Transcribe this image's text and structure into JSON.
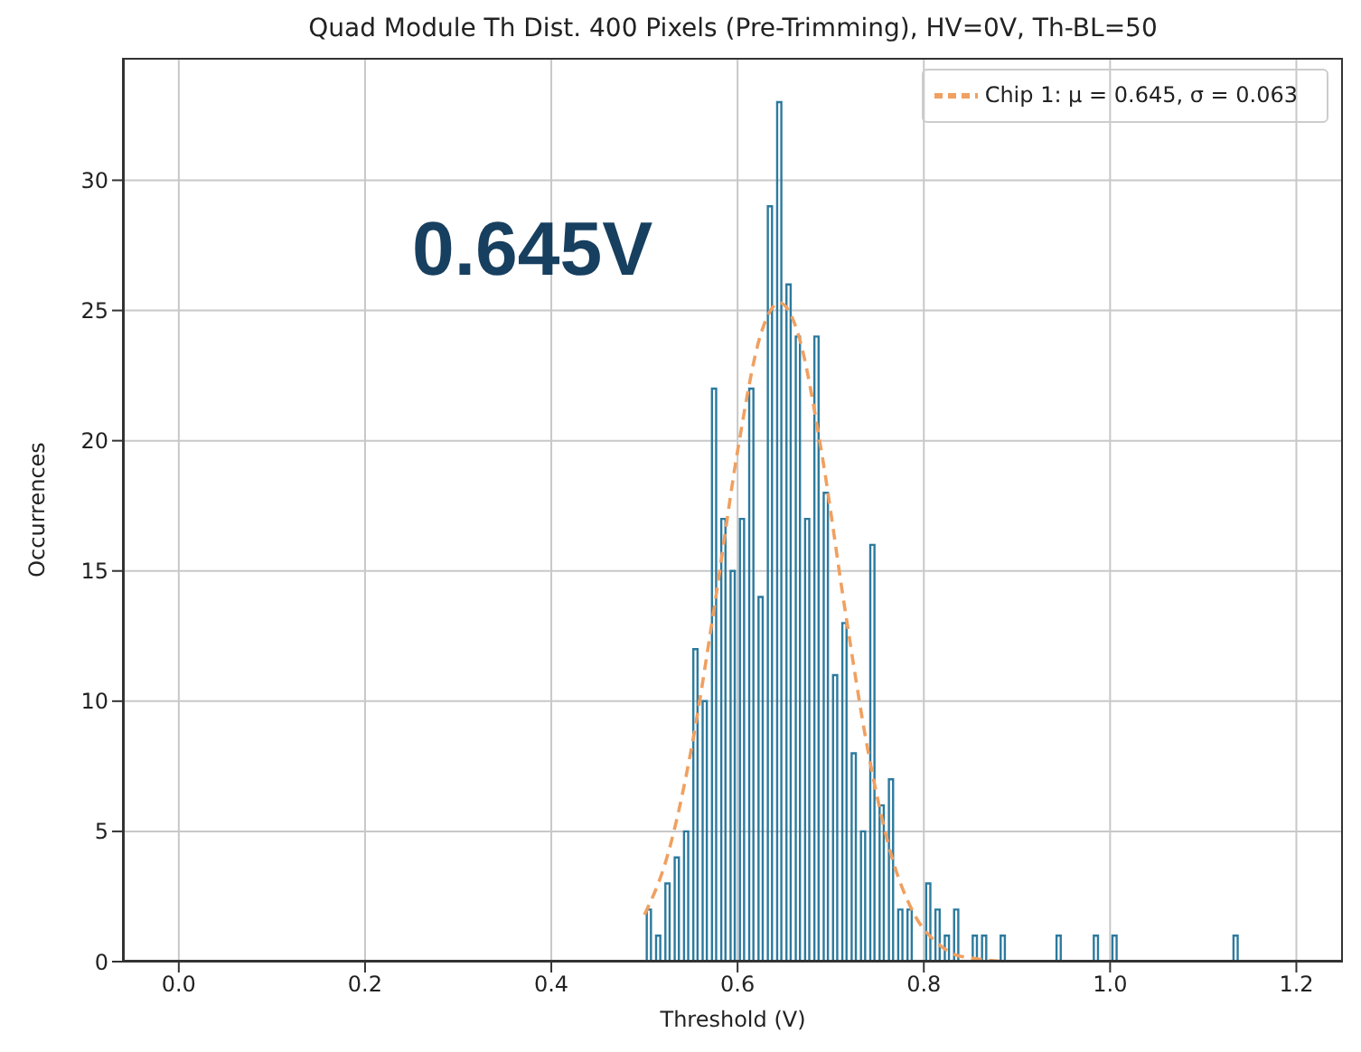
{
  "chart_data": {
    "type": "histogram",
    "title": "Quad Module Th Dist. 400 Pixels (Pre-Trimming), HV=0V, Th-BL=50",
    "xlabel": "Threshold (V)",
    "ylabel": "Occurrences",
    "bins": [
      0.5,
      0.51,
      0.52,
      0.53,
      0.54,
      0.55,
      0.56,
      0.57,
      0.58,
      0.59,
      0.6,
      0.61,
      0.62,
      0.63,
      0.64,
      0.65,
      0.66,
      0.67,
      0.68,
      0.69,
      0.7,
      0.71,
      0.72,
      0.73,
      0.74,
      0.75,
      0.76,
      0.77,
      0.78,
      0.79,
      0.8,
      0.81,
      0.82,
      0.83,
      0.84,
      0.85,
      0.86,
      0.87,
      0.88,
      0.89,
      0.9,
      0.91,
      0.92,
      0.93,
      0.94,
      0.95,
      0.96,
      0.97,
      0.98,
      0.99,
      1.0,
      1.01,
      1.02,
      1.03,
      1.04,
      1.05,
      1.06,
      1.07,
      1.08,
      1.09,
      1.1,
      1.11,
      1.12,
      1.13,
      1.14
    ],
    "values": [
      2,
      1,
      3,
      4,
      5,
      12,
      10,
      22,
      17,
      15,
      17,
      22,
      14,
      29,
      33,
      26,
      24,
      17,
      24,
      18,
      11,
      13,
      8,
      5,
      16,
      6,
      7,
      2,
      2,
      0,
      3,
      2,
      1,
      2,
      0,
      1,
      1,
      0,
      1,
      0,
      0,
      0,
      0,
      0,
      1,
      0,
      0,
      0,
      1,
      0,
      1,
      0,
      0,
      0,
      0,
      0,
      0,
      0,
      0,
      0,
      0,
      0,
      0,
      1
    ],
    "color": "#2c7a9e",
    "series": [
      {
        "type": "line",
        "name": "Chip 1: μ = 0.645, σ = 0.063",
        "color": "#f0a060",
        "line_style": "dashed",
        "x": [
          0.5,
          0.525,
          0.55,
          0.575,
          0.6,
          0.625,
          0.645,
          0.665,
          0.69,
          0.715,
          0.74,
          0.765,
          0.79,
          0.815,
          0.84,
          0.9,
          0.96,
          1.11
        ],
        "values": [
          1.8,
          4.1,
          8.1,
          13.6,
          19.6,
          24.1,
          25.3,
          24.1,
          19.6,
          13.6,
          8.1,
          4.1,
          1.8,
          0.7,
          0.2,
          0,
          0,
          0
        ]
      }
    ],
    "xlim": [
      -0.06,
      1.25
    ],
    "xticks": [
      {
        "value": 0,
        "label": "0.0"
      },
      {
        "value": 0.2,
        "label": "0.2"
      },
      {
        "value": 0.4,
        "label": "0.4"
      },
      {
        "value": 0.6,
        "label": "0.6"
      },
      {
        "value": 0.8,
        "label": "0.8"
      },
      {
        "value": 1.0,
        "label": "1.0"
      },
      {
        "value": 1.2,
        "label": "1.2"
      }
    ],
    "ylim": [
      0,
      34.7
    ],
    "yticks": [
      0,
      5,
      10,
      15,
      20,
      25,
      30
    ],
    "grid": true,
    "legend": "top right",
    "annotations": [
      "0.645V"
    ]
  }
}
